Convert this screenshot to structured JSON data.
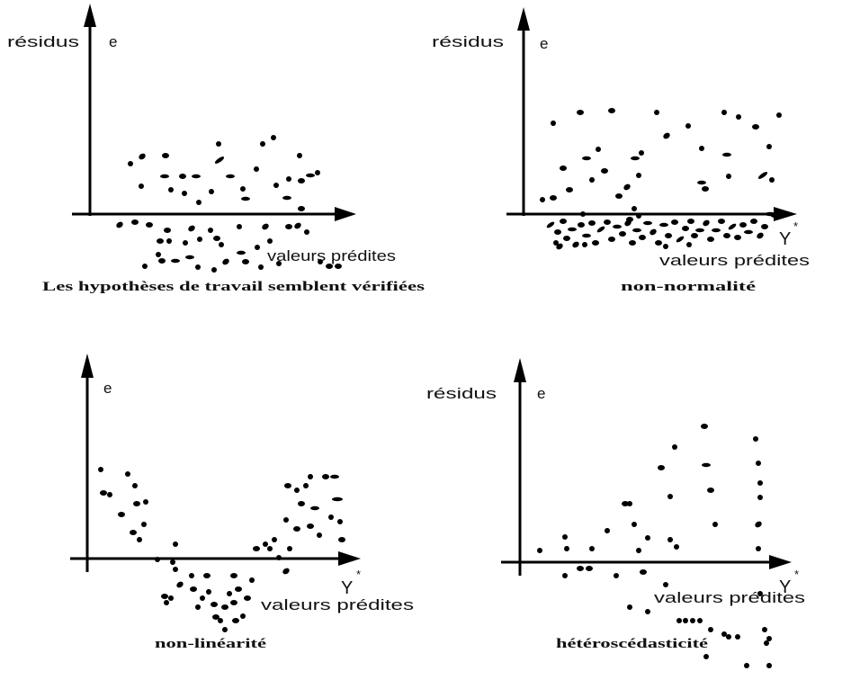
{
  "panels": [
    {
      "y_label": "résidus",
      "e_label": "e",
      "x_label": "valeurs prédites",
      "caption": "Les hypothèses de travail semblent vérifiées"
    },
    {
      "y_label": "résidus",
      "e_label": "e",
      "x_symbol": "Y",
      "x_symbol_sup": "*",
      "x_label": "valeurs prédites",
      "caption": "non-normalité"
    },
    {
      "e_label": "e",
      "x_symbol": "Y",
      "x_symbol_sup": "*",
      "x_label": "valeurs prédites",
      "caption": "non-linéarité"
    },
    {
      "y_label": "résidus",
      "e_label": "e",
      "x_symbol": "Y",
      "x_symbol_sup": "*",
      "x_label": "valeurs prédites",
      "caption": "hétéroscédasticité"
    }
  ]
}
